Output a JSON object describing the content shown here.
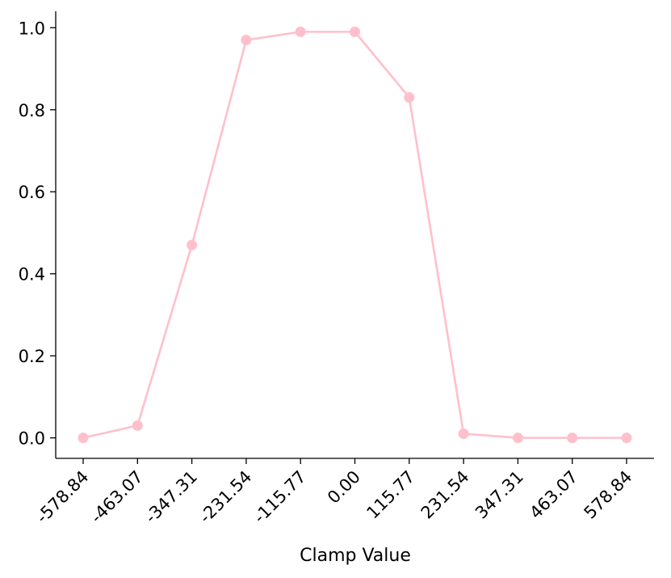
{
  "chart_data": {
    "type": "line",
    "title": "",
    "xlabel": "Clamp Value",
    "ylabel": "",
    "x": [
      "-578.84",
      "-463.07",
      "-347.31",
      "-231.54",
      "-115.77",
      "0.00",
      "115.77",
      "231.54",
      "347.31",
      "463.07",
      "578.84"
    ],
    "series": [
      {
        "values": [
          0.0,
          0.03,
          0.47,
          0.97,
          0.99,
          0.99,
          0.83,
          0.01,
          0.0,
          0.0,
          0.0
        ]
      }
    ],
    "ylim": [
      -0.05,
      1.04
    ],
    "yticks": [
      "0.0",
      "0.2",
      "0.4",
      "0.6",
      "0.8",
      "1.0"
    ],
    "ytick_values": [
      0.0,
      0.2,
      0.4,
      0.6,
      0.8,
      1.0
    ],
    "grid": false,
    "legend": "none",
    "colors": {
      "line": "#ffc0cb",
      "marker": "#ffc0cb",
      "axis": "#000000"
    }
  }
}
